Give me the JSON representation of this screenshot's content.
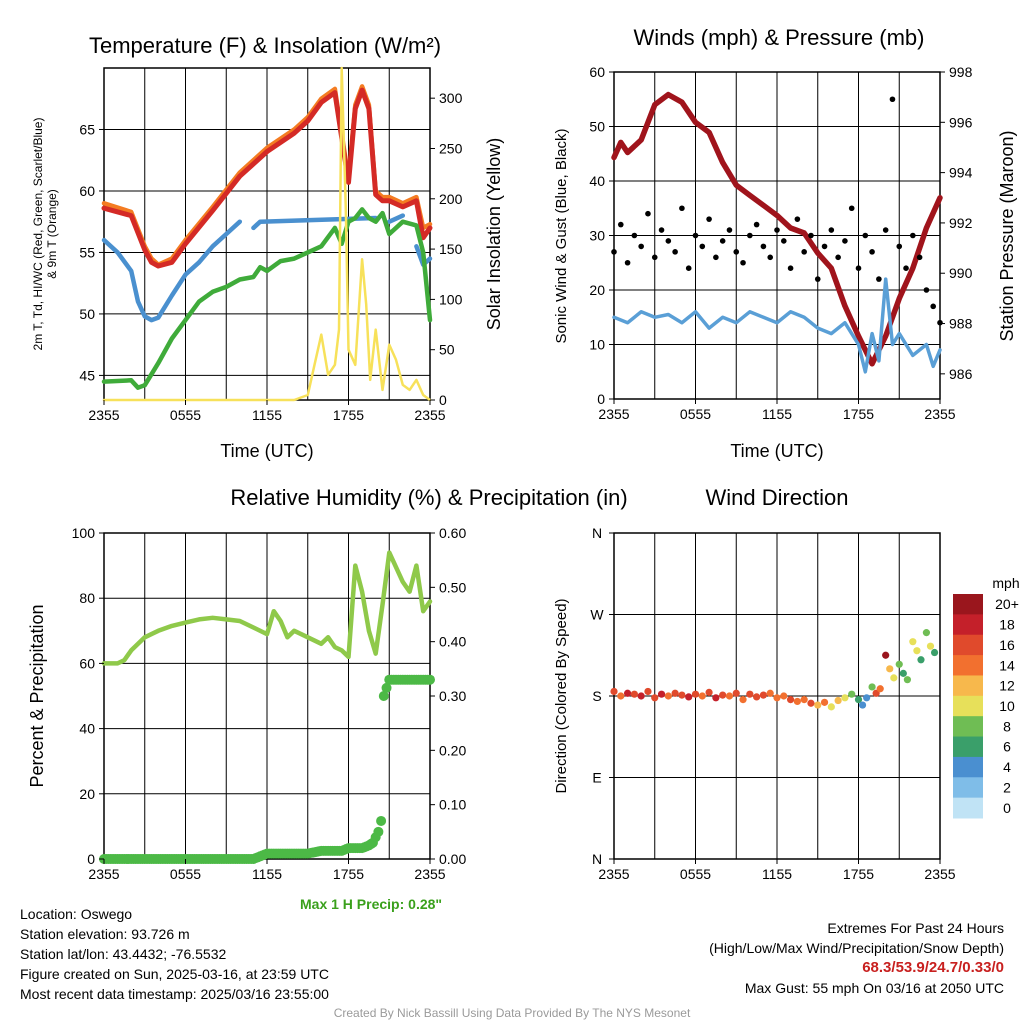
{
  "panels": {
    "temp": {
      "title": "Temperature (F) & Insolation (W/m²)",
      "ylabel_left_1": "2m T, Td, HI/WC (Red, Green, Scarlet/Blue)",
      "ylabel_left_2": "& 9m T (Orange)",
      "ylabel_right": "Solar Insolation (Yellow)",
      "xlabel": "Time (UTC)"
    },
    "wind": {
      "title": "Winds (mph) & Pressure (mb)",
      "ylabel_left": "Sonic Wind & Gust (Blue, Black)",
      "ylabel_right": "Station Pressure (Maroon)",
      "xlabel": "Time (UTC)"
    },
    "rh": {
      "title": "Relative Humidity (%) & Precipitation (in)",
      "ylabel_left": "Percent & Precipitation",
      "max_precip": "Max 1 H Precip: 0.28\""
    },
    "dir": {
      "title": "Wind Direction",
      "ylabel_left": "Direction (Colored By Speed)",
      "legend_title": "mph"
    }
  },
  "info": {
    "location": "Location: Oswego",
    "elevation": "Station elevation: 93.726 m",
    "latlon": "Station lat/lon: 43.4432; -76.5532",
    "created": "Figure created on Sun, 2025-03-16, at 23:59 UTC",
    "recent": "Most recent data timestamp: 2025/03/16 23:55:00",
    "extremes_title": "Extremes For Past 24 Hours",
    "extremes_sub": "(High/Low/Max Wind/Precipitation/Snow Depth)",
    "extremes_values": "68.3/53.9/24.7/0.33/0",
    "max_gust": "Max Gust: 55 mph On 03/16 at 2050 UTC",
    "credit": "Created By Nick Bassill Using Data Provided By The NYS Mesonet"
  },
  "colors": {
    "temp": "#d42a26",
    "temp9m": "#f47c22",
    "dewpoint": "#3fab3a",
    "windchill": "#4a90cf",
    "solar": "#f7e15a",
    "wind": "#5a9fd6",
    "gust": "#000000",
    "pressure": "#a0141c",
    "rh": "#8fc94a",
    "precip": "#4cb946"
  },
  "chart_data": [
    {
      "type": "line",
      "title": "Temperature (F) & Insolation (W/m²)",
      "xlabel": "Time (UTC)",
      "xticks": [
        "2355",
        "0555",
        "1155",
        "1755",
        "2355"
      ],
      "ylim": [
        43,
        70
      ],
      "yticks": [
        45,
        50,
        55,
        60,
        65
      ],
      "y2lim": [
        0,
        330
      ],
      "y2ticks": [
        0,
        50,
        100,
        150,
        200,
        250,
        300
      ],
      "series": [
        {
          "key": "temp9m",
          "axis": "left",
          "x": [
            0,
            2,
            3,
            3.5,
            4,
            5,
            6,
            8,
            10,
            12,
            14,
            15,
            16,
            17,
            18,
            18.5,
            19,
            19.5,
            20,
            20.5,
            21,
            22,
            23,
            23.5,
            24
          ],
          "y": [
            59,
            58.3,
            55.5,
            54.5,
            54,
            54.5,
            56,
            58.7,
            61.5,
            63.5,
            65,
            66,
            67.5,
            68.3,
            61,
            67,
            68.5,
            67,
            60,
            59.5,
            59.5,
            59,
            59.5,
            57,
            57.3
          ]
        },
        {
          "key": "temp",
          "axis": "left",
          "x": [
            0,
            2,
            3,
            3.5,
            4,
            5,
            6,
            8,
            10,
            12,
            14,
            15,
            16,
            17,
            18,
            18.5,
            19,
            19.5,
            20,
            20.5,
            21,
            22,
            23,
            23.5,
            24
          ],
          "y": [
            58.6,
            58,
            55.2,
            54.2,
            53.9,
            54.2,
            55.7,
            58.4,
            61.2,
            63.2,
            64.7,
            65.7,
            67.2,
            68,
            60.7,
            66.7,
            68.2,
            66.7,
            59.7,
            59.2,
            59.2,
            58.7,
            59.2,
            56.2,
            57
          ]
        },
        {
          "key": "windchill",
          "axis": "left",
          "x": [
            0,
            1,
            2,
            2.5,
            3,
            3.5,
            4,
            5,
            6,
            7,
            8,
            9,
            10,
            10.5,
            11,
            11.5,
            20,
            20.5,
            21,
            22,
            22.5,
            23,
            23.5,
            24
          ],
          "y": [
            56,
            55,
            53.5,
            51,
            49.8,
            49.5,
            49.7,
            51.5,
            53.2,
            54.2,
            55.5,
            56.5,
            57.5,
            null,
            57,
            57.5,
            57.8,
            null,
            57.5,
            58,
            null,
            55.5,
            54,
            54.5
          ]
        },
        {
          "key": "dewpoint",
          "axis": "left",
          "x": [
            0,
            2,
            2.5,
            3,
            4,
            5,
            6,
            7,
            8,
            9,
            10,
            11,
            11.5,
            12,
            13,
            14,
            15,
            16,
            17,
            17.5,
            18,
            18.5,
            19,
            19.5,
            20,
            20.5,
            21,
            22,
            23,
            23.5,
            24
          ],
          "y": [
            44.5,
            44.6,
            44,
            44.2,
            46,
            48,
            49.5,
            51,
            51.8,
            52.2,
            52.8,
            53,
            53.8,
            53.5,
            54.3,
            54.5,
            55,
            55.5,
            57,
            55.7,
            57.5,
            57.8,
            58.5,
            57.8,
            57.5,
            58.2,
            56.5,
            57.5,
            57.2,
            55,
            49.5
          ]
        },
        {
          "key": "solar",
          "axis": "right",
          "x": [
            0,
            14,
            15,
            15.5,
            16,
            16.5,
            17,
            17.3,
            17.5,
            17.8,
            18,
            18.5,
            19,
            19.3,
            19.6,
            20,
            20.5,
            21,
            21.5,
            22,
            22.5,
            23,
            23.5,
            24
          ],
          "y": [
            0,
            0,
            5,
            35,
            65,
            25,
            35,
            70,
            330,
            190,
            50,
            35,
            140,
            95,
            20,
            70,
            10,
            55,
            40,
            15,
            10,
            20,
            5,
            0
          ]
        }
      ]
    },
    {
      "type": "line",
      "title": "Winds (mph) & Pressure (mb)",
      "xlabel": "Time (UTC)",
      "xticks": [
        "2355",
        "0555",
        "1155",
        "1755",
        "2355"
      ],
      "ylim": [
        0,
        60
      ],
      "yticks": [
        0,
        10,
        20,
        30,
        40,
        50,
        60
      ],
      "y2lim": [
        985,
        998
      ],
      "y2ticks": [
        986,
        988,
        990,
        992,
        994,
        996,
        998
      ],
      "series": [
        {
          "key": "pressure",
          "axis": "right",
          "x": [
            0,
            0.5,
            1,
            2,
            3,
            4,
            5,
            6,
            7,
            8,
            9,
            10,
            11,
            12,
            13,
            14,
            15,
            16,
            17,
            18,
            19,
            20,
            21,
            22,
            23,
            24
          ],
          "y": [
            994.6,
            995.2,
            994.8,
            995.3,
            996.7,
            997.1,
            996.8,
            996,
            995.6,
            994.4,
            993.5,
            993.1,
            992.7,
            992.3,
            991.8,
            991.6,
            990.8,
            990.2,
            988.7,
            987.5,
            986.4,
            987.5,
            989,
            990.2,
            991.8,
            993
          ]
        },
        {
          "key": "wind",
          "axis": "left",
          "x": [
            0,
            1,
            2,
            3,
            4,
            5,
            6,
            7,
            8,
            9,
            10,
            11,
            12,
            13,
            14,
            15,
            16,
            17,
            18,
            18.5,
            19,
            19.5,
            20,
            20.5,
            21,
            22,
            23,
            23.5,
            24
          ],
          "y": [
            15,
            14,
            16,
            15,
            15.5,
            14,
            16,
            13,
            15,
            14,
            16,
            15,
            14,
            16,
            15,
            13,
            12,
            14,
            10,
            5,
            12,
            7,
            22,
            10,
            12,
            8,
            10,
            6,
            9
          ]
        },
        {
          "key": "gust",
          "axis": "left",
          "type": "scatter",
          "x": [
            0,
            0.5,
            1,
            1.5,
            2,
            2.5,
            3,
            3.5,
            4,
            4.5,
            5,
            5.5,
            6,
            6.5,
            7,
            7.5,
            8,
            8.5,
            9,
            9.5,
            10,
            10.5,
            11,
            11.5,
            12,
            12.5,
            13,
            13.5,
            14,
            14.5,
            15,
            15.5,
            16,
            16.5,
            17,
            17.5,
            18,
            18.5,
            19,
            19.5,
            20,
            20.5,
            21,
            21.5,
            22,
            22.5,
            23,
            23.5,
            24
          ],
          "y": [
            27,
            32,
            25,
            30,
            28,
            34,
            26,
            31,
            29,
            27,
            35,
            24,
            30,
            28,
            33,
            26,
            29,
            31,
            27,
            25,
            30,
            32,
            28,
            26,
            31,
            29,
            24,
            33,
            27,
            30,
            22,
            28,
            31,
            26,
            29,
            35,
            24,
            30,
            27,
            22,
            31,
            55,
            28,
            24,
            30,
            26,
            20,
            17,
            14
          ]
        }
      ]
    },
    {
      "type": "line",
      "title": "Relative Humidity (%) & Precipitation (in)",
      "ylim": [
        0,
        100
      ],
      "yticks": [
        0,
        20,
        40,
        60,
        80,
        100
      ],
      "y2lim": [
        0,
        0.6
      ],
      "y2ticks": [
        "0.00",
        "0.10",
        "0.20",
        "0.30",
        "0.40",
        "0.50",
        "0.60"
      ],
      "xticks": [
        "2355",
        "0555",
        "1155",
        "1755",
        "2355"
      ],
      "series": [
        {
          "key": "rh",
          "axis": "left",
          "x": [
            0,
            1,
            1.5,
            2,
            3,
            4,
            5,
            6,
            7,
            8,
            9,
            10,
            11,
            12,
            12.5,
            13,
            13.5,
            14,
            15,
            16,
            16.5,
            17,
            17.5,
            18,
            18.5,
            19,
            19.5,
            20,
            20.5,
            21,
            22,
            22.5,
            23,
            23.5,
            24
          ],
          "y": [
            60,
            60,
            61,
            64,
            68,
            70,
            71.5,
            72.5,
            73.5,
            74,
            73.5,
            73,
            71,
            69,
            76,
            73,
            68,
            70,
            68,
            66,
            68,
            65,
            64,
            62,
            90,
            82,
            70,
            63,
            78,
            94,
            85,
            82,
            90,
            76,
            79
          ]
        },
        {
          "key": "precip",
          "axis": "right",
          "type": "scatter",
          "x": [
            0,
            2,
            4,
            6,
            8,
            10,
            11,
            11.5,
            12,
            13,
            14,
            15,
            16,
            17,
            17.5,
            18,
            18.5,
            19,
            19.5,
            19.8,
            20,
            20.2,
            20.4,
            20.6,
            21,
            22,
            23,
            23.5,
            24
          ],
          "y": [
            0,
            0,
            0,
            0,
            0,
            0,
            0,
            0.005,
            0.01,
            0.01,
            0.01,
            0.01,
            0.015,
            0.015,
            0.015,
            0.02,
            0.02,
            0.02,
            0.025,
            0.03,
            0.04,
            0.05,
            0.07,
            0.3,
            0.33,
            0.33,
            0.33,
            0.33,
            0.33
          ]
        }
      ]
    },
    {
      "type": "scatter",
      "title": "Wind Direction",
      "ylabel": "Direction (Colored By Speed)",
      "yticks": [
        "N",
        "E",
        "S",
        "W",
        "N"
      ],
      "xticks": [
        "2355",
        "0555",
        "1155",
        "1755",
        "2355"
      ],
      "legend": {
        "title": "mph",
        "labels": [
          "20+",
          "18",
          "16",
          "14",
          "12",
          "10",
          "8",
          "6",
          "4",
          "2",
          "0"
        ]
      },
      "points": {
        "x": [
          0,
          0.5,
          1,
          1.5,
          2,
          2.5,
          3,
          3.5,
          4,
          4.5,
          5,
          5.5,
          6,
          6.5,
          7,
          7.5,
          8,
          8.5,
          9,
          9.5,
          10,
          10.5,
          11,
          11.5,
          12,
          12.5,
          13,
          13.5,
          14,
          14.5,
          15,
          15.5,
          16,
          16.5,
          17,
          17.5,
          18,
          18.3,
          18.6,
          19,
          19.3,
          19.6,
          20,
          20.3,
          20.6,
          21,
          21.3,
          21.6,
          22,
          22.3,
          22.6,
          23,
          23.3,
          23.6
        ],
        "dir": [
          185,
          180,
          183,
          182,
          180,
          185,
          178,
          182,
          180,
          183,
          181,
          179,
          182,
          180,
          184,
          178,
          181,
          180,
          183,
          176,
          182,
          179,
          181,
          183,
          178,
          180,
          176,
          174,
          176,
          172,
          170,
          173,
          168,
          175,
          178,
          182,
          176,
          170,
          178,
          190,
          183,
          188,
          225,
          210,
          200,
          215,
          205,
          198,
          240,
          230,
          220,
          250,
          235,
          228
        ],
        "spd": [
          16,
          14,
          17,
          15,
          18,
          16,
          15,
          17,
          14,
          16,
          15,
          17,
          16,
          14,
          15,
          17,
          16,
          13,
          15,
          14,
          16,
          15,
          16,
          14,
          13,
          14,
          15,
          13,
          14,
          16,
          12,
          14,
          10,
          12,
          9,
          8,
          6,
          3,
          4,
          8,
          16,
          14,
          19,
          12,
          10,
          8,
          6,
          7,
          10,
          9,
          6,
          8,
          10,
          6
        ]
      }
    }
  ]
}
